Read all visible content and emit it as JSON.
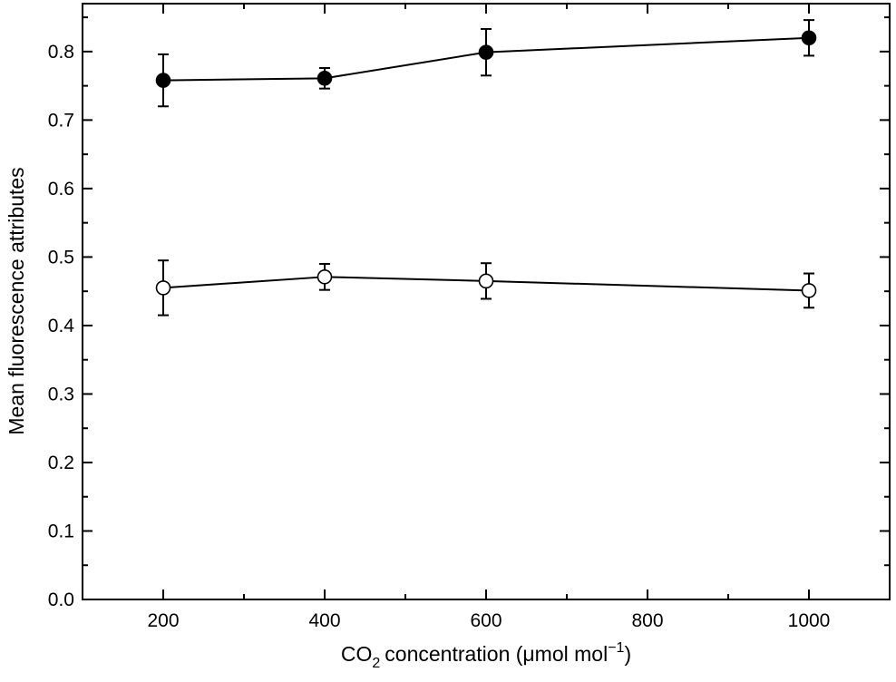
{
  "chart_data": {
    "type": "scatter",
    "title": "",
    "xlabel": "concentration (μmol mol",
    "xlabel_prefix": "CO",
    "xlabel_sub": "2",
    "xlabel_sup": "−1",
    "xlabel_close": ")",
    "ylabel": "Mean fluorescence attributes",
    "xlim": [
      100,
      1100
    ],
    "ylim": [
      0,
      0.87
    ],
    "x_ticks": [
      200,
      400,
      600,
      800,
      1000
    ],
    "x_tick_labels": [
      "200",
      "400",
      "600",
      "800",
      "1000"
    ],
    "x_minor_ticks": [
      100,
      300,
      500,
      700,
      900,
      1100
    ],
    "y_ticks": [
      0,
      0.1,
      0.2,
      0.3,
      0.4,
      0.5,
      0.6,
      0.7,
      0.8
    ],
    "y_tick_labels": [
      "0.0",
      "0.1",
      "0.2",
      "0.3",
      "0.4",
      "0.5",
      "0.6",
      "0.7",
      "0.8"
    ],
    "y_minor_ticks": [
      0.05,
      0.15,
      0.25,
      0.35,
      0.45,
      0.55,
      0.65,
      0.75,
      0.85
    ],
    "grid": false,
    "legend": "none",
    "x": [
      200,
      400,
      600,
      1000
    ],
    "series": [
      {
        "marker": "filled-circle",
        "color": "#000000",
        "y": [
          0.758,
          0.761,
          0.799,
          0.82
        ],
        "err": [
          0.038,
          0.015,
          0.034,
          0.026
        ]
      },
      {
        "marker": "open-circle",
        "color": "#000000",
        "y": [
          0.455,
          0.471,
          0.465,
          0.451
        ],
        "err": [
          0.04,
          0.019,
          0.026,
          0.025
        ]
      }
    ]
  }
}
